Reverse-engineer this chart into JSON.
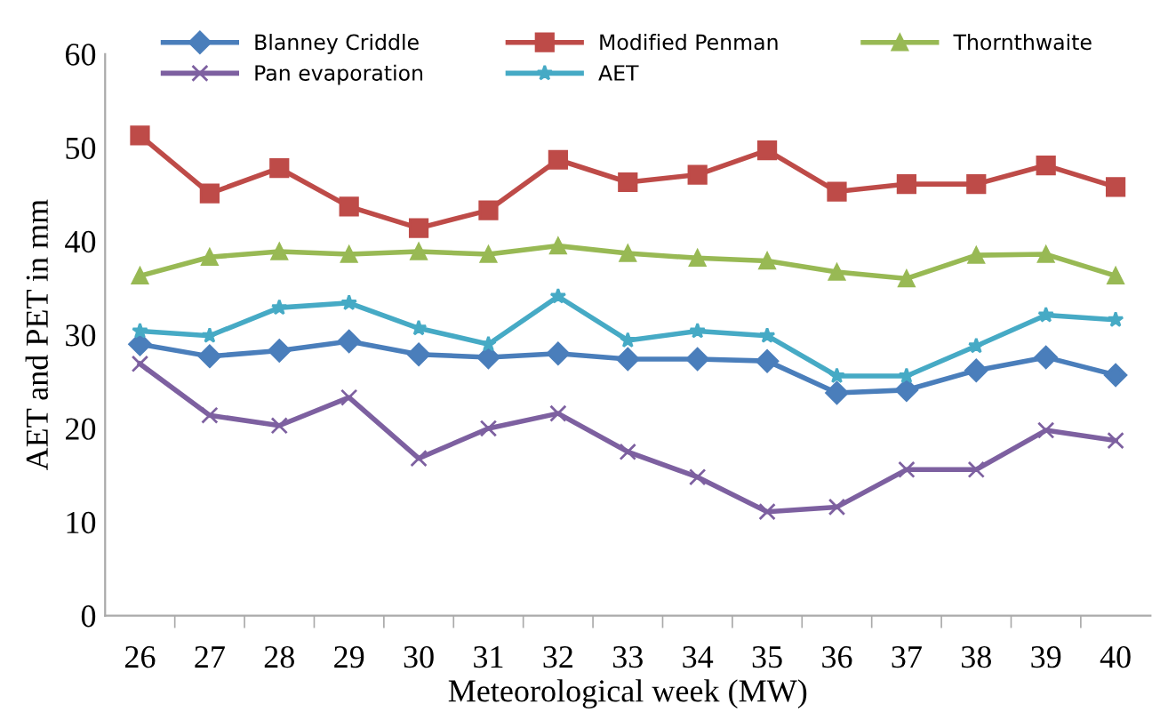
{
  "chart_data": {
    "type": "line",
    "xlabel": "Meteorological week (MW)",
    "ylabel": "AET and PET in mm",
    "categories": [
      "26",
      "27",
      "28",
      "29",
      "30",
      "31",
      "32",
      "33",
      "34",
      "35",
      "36",
      "37",
      "38",
      "39",
      "40"
    ],
    "ylim": [
      0,
      60
    ],
    "yticks": [
      0,
      10,
      20,
      30,
      40,
      50,
      60
    ],
    "grid": false,
    "legend": "top",
    "line_style": "solid",
    "series": [
      {
        "name": "Blanney Criddle",
        "color": "#4a7ebb",
        "marker": "diamond",
        "values": [
          29.0,
          27.7,
          28.3,
          29.3,
          27.9,
          27.6,
          28.0,
          27.4,
          27.4,
          27.2,
          23.8,
          24.1,
          26.2,
          27.6,
          25.7
        ]
      },
      {
        "name": "Modified Penman",
        "color": "#be4b48",
        "marker": "square",
        "values": [
          51.3,
          45.1,
          47.8,
          43.7,
          41.4,
          43.3,
          48.7,
          46.3,
          47.1,
          49.7,
          45.3,
          46.1,
          46.1,
          48.1,
          45.8
        ]
      },
      {
        "name": "Thornthwaite",
        "color": "#98b954",
        "marker": "triangle",
        "values": [
          36.3,
          38.3,
          38.9,
          38.6,
          38.9,
          38.6,
          39.5,
          38.7,
          38.2,
          37.9,
          36.7,
          36.0,
          38.5,
          38.6,
          36.3
        ]
      },
      {
        "name": "Pan evaporation",
        "color": "#7d60a0",
        "marker": "cross",
        "values": [
          26.9,
          21.4,
          20.3,
          23.3,
          16.8,
          20.0,
          21.6,
          17.5,
          14.8,
          11.1,
          11.6,
          15.6,
          15.6,
          19.8,
          18.7
        ]
      },
      {
        "name": "AET",
        "color": "#46aac5",
        "marker": "star",
        "values": [
          30.4,
          29.9,
          32.9,
          33.4,
          30.7,
          29.0,
          34.1,
          29.4,
          30.4,
          29.9,
          25.6,
          25.6,
          28.8,
          32.1,
          31.6
        ]
      }
    ]
  }
}
